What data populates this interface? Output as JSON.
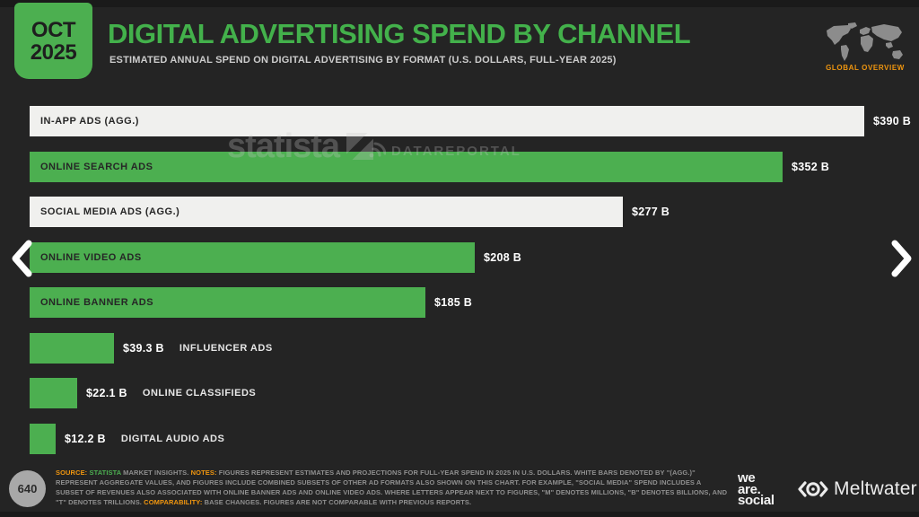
{
  "colors": {
    "green": "#4CAF50",
    "aggregate_bar": "#F0F0EE",
    "background": "#242424",
    "orange": "#F0960F",
    "title_green": "#43B14B"
  },
  "header": {
    "date_month": "OCT",
    "date_year": "2025",
    "title": "DIGITAL ADVERTISING SPEND BY CHANNEL",
    "subtitle": "ESTIMATED ANNUAL SPEND ON DIGITAL ADVERTISING BY FORMAT (U.S. DOLLARS, FULL-YEAR 2025)",
    "badge": "GLOBAL OVERVIEW"
  },
  "watermarks": {
    "statista": "statista",
    "datareportal": "DATAREPORTAL"
  },
  "chart_data": {
    "type": "bar",
    "orientation": "horizontal",
    "title": "DIGITAL ADVERTISING SPEND BY CHANNEL",
    "subtitle": "ESTIMATED ANNUAL SPEND ON DIGITAL ADVERTISING BY FORMAT (U.S. DOLLARS, FULL-YEAR 2025)",
    "unit": "U.S. dollars, billions, full-year 2025",
    "categories": [
      "IN-APP ADS (AGG.)",
      "ONLINE SEARCH ADS",
      "SOCIAL MEDIA ADS (AGG.)",
      "ONLINE VIDEO ADS",
      "ONLINE BANNER ADS",
      "INFLUENCER ADS",
      "ONLINE CLASSIFIEDS",
      "DIGITAL AUDIO ADS"
    ],
    "values": [
      390,
      352,
      277,
      208,
      185,
      39.3,
      22.1,
      12.2
    ],
    "value_labels": [
      "$390 B",
      "$352 B",
      "$277 B",
      "$208 B",
      "$185 B",
      "$39.3 B",
      "$22.1 B",
      "$12.2 B"
    ],
    "bar_styles": [
      "aggregate",
      "normal",
      "aggregate",
      "normal",
      "normal",
      "normal",
      "normal",
      "normal"
    ],
    "label_positions": [
      "inside",
      "inside",
      "inside",
      "inside",
      "inside",
      "outside",
      "outside",
      "outside"
    ],
    "xlim": [
      0,
      390
    ],
    "grid": false,
    "legend": false
  },
  "footer": {
    "page_number": "640",
    "source_label": "SOURCE:",
    "source_link": " STATISTA",
    "source_rest": " MARKET INSIGHTS. ",
    "notes_label": "NOTES:",
    "notes_text": " FIGURES REPRESENT ESTIMATES AND PROJECTIONS FOR FULL-YEAR SPEND IN 2025 IN U.S. DOLLARS. WHITE BARS DENOTED BY \"(AGG.)\" REPRESENT AGGREGATE VALUES, AND FIGURES INCLUDE COMBINED SUBSETS OF OTHER AD FORMATS ALSO SHOWN ON THIS CHART. FOR EXAMPLE, \"SOCIAL MEDIA\" SPEND INCLUDES A SUBSET OF REVENUES ALSO ASSOCIATED WITH ONLINE BANNER ADS AND ONLINE VIDEO ADS. WHERE LETTERS APPEAR NEXT TO FIGURES, \"M\" DENOTES MILLIONS, \"B\" DENOTES BILLIONS, AND \"T\" DENOTES TRILLIONS. ",
    "comparability_label": "COMPARABILITY:",
    "comparability_text": " BASE CHANGES. FIGURES ARE NOT COMPARABLE WITH PREVIOUS REPORTS."
  },
  "brand": {
    "we_are_social": [
      "we",
      "are.",
      "social"
    ],
    "meltwater": "Meltwater"
  }
}
